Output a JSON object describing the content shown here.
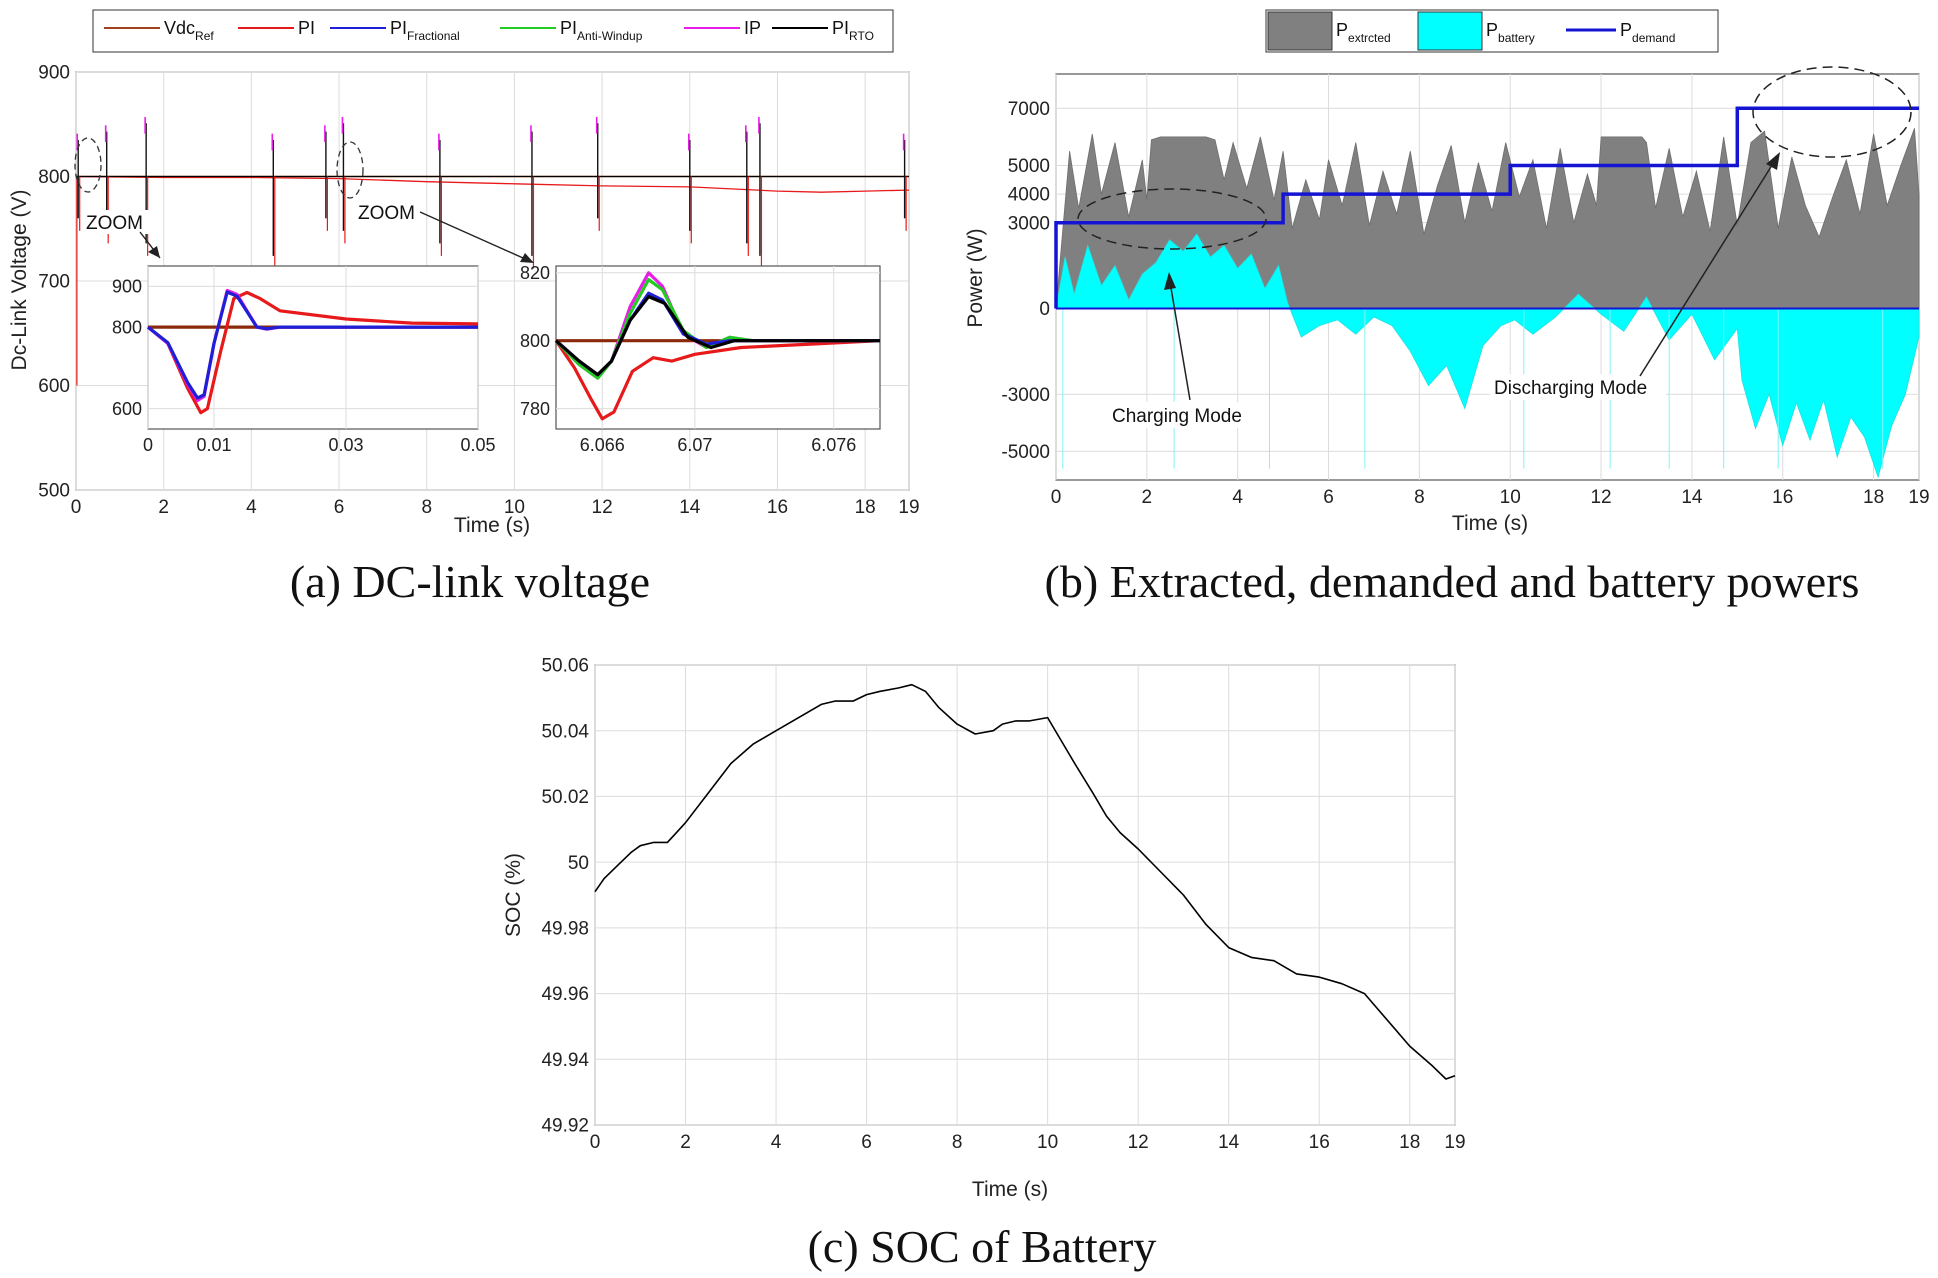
{
  "chart_data": [
    {
      "id": "a",
      "type": "line",
      "caption": "(a) DC-link voltage",
      "xlabel": "Time (s)",
      "ylabel": "Dc-Link Voltage (V)",
      "xlim": [
        0,
        19
      ],
      "ylim": [
        500,
        900
      ],
      "xticks": [
        0,
        2,
        4,
        6,
        8,
        10,
        12,
        14,
        16,
        18,
        19
      ],
      "yticks": [
        500,
        600,
        700,
        800,
        900
      ],
      "grid": true,
      "legend_position": "top",
      "legend": [
        {
          "main": "Vdc",
          "sub": "Ref",
          "color": "#a0421d"
        },
        {
          "main": "PI",
          "sub": "",
          "color": "#e8191a"
        },
        {
          "main": "PI",
          "sub": "Fractional",
          "color": "#1f1fd6"
        },
        {
          "main": "PI",
          "sub": "Anti-Windup",
          "color": "#22cc22"
        },
        {
          "main": "IP",
          "sub": "",
          "color": "#e61ee6"
        },
        {
          "main": "PI",
          "sub": "RTO",
          "color": "#000000"
        }
      ],
      "reference_voltage": 800,
      "pi_drift": {
        "t": [
          0,
          2,
          4,
          6,
          8,
          10,
          12,
          14,
          16,
          17,
          18,
          19
        ],
        "v": [
          800,
          799,
          799,
          798,
          795,
          793,
          791,
          790,
          786,
          785,
          786,
          787
        ]
      },
      "disturbance_times": [
        0.05,
        0.7,
        1.6,
        4.5,
        5.7,
        6.1,
        8.3,
        10.4,
        11.9,
        14.0,
        15.3,
        15.6,
        18.9
      ],
      "annotations": [
        "ZOOM",
        "ZOOM"
      ],
      "insets": [
        {
          "xlim": [
            0,
            0.05
          ],
          "ylim": [
            550,
            950
          ],
          "xticks": [
            0,
            0.01,
            0.03,
            0.05
          ],
          "xticklabels": [
            "0",
            "0.01",
            "0.03",
            "0.05"
          ],
          "yticks": [
            600,
            800,
            900
          ],
          "series": [
            {
              "name": "Vdc_Ref",
              "color": "#8b2a0b",
              "x": [
                0,
                0.05
              ],
              "y": [
                800,
                800
              ]
            },
            {
              "name": "PI",
              "color": "#e8191a",
              "x": [
                0,
                0.003,
                0.006,
                0.008,
                0.009,
                0.011,
                0.013,
                0.015,
                0.017,
                0.02,
                0.03,
                0.04,
                0.05
              ],
              "y": [
                800,
                760,
                650,
                590,
                600,
                740,
                870,
                885,
                870,
                840,
                820,
                810,
                808
              ]
            },
            {
              "name": "IP",
              "color": "#e61ee6",
              "x": [
                0,
                0.003,
                0.006,
                0.0075,
                0.0085,
                0.01,
                0.012,
                0.0135,
                0.015,
                0.0165,
                0.018,
                0.02,
                0.025,
                0.05
              ],
              "y": [
                800,
                760,
                660,
                620,
                630,
                760,
                890,
                880,
                840,
                800,
                795,
                800,
                800,
                800
              ]
            },
            {
              "name": "PI_Fractional",
              "color": "#1f1fd6",
              "x": [
                0,
                0.003,
                0.006,
                0.0075,
                0.0085,
                0.01,
                0.012,
                0.0135,
                0.015,
                0.0165,
                0.018,
                0.02,
                0.025,
                0.05
              ],
              "y": [
                800,
                762,
                664,
                626,
                634,
                760,
                886,
                876,
                838,
                800,
                796,
                800,
                800,
                800
              ]
            }
          ]
        },
        {
          "xlim": [
            6.064,
            6.078
          ],
          "ylim": [
            774,
            822
          ],
          "xticks": [
            6.066,
            6.07,
            6.076
          ],
          "xticklabels": [
            "6.066",
            "6.07",
            "6.076"
          ],
          "yticks": [
            780,
            800,
            820
          ],
          "series": [
            {
              "name": "Vdc_Ref",
              "color": "#8b2a0b",
              "x": [
                6.064,
                6.078
              ],
              "y": [
                800,
                800
              ]
            },
            {
              "name": "PI",
              "color": "#e8191a",
              "x": [
                6.064,
                6.0648,
                6.0655,
                6.066,
                6.0665,
                6.0673,
                6.0682,
                6.069,
                6.07,
                6.072,
                6.075,
                6.078
              ],
              "y": [
                800,
                792,
                783,
                777,
                779,
                791,
                795,
                794,
                796,
                798,
                799,
                800
              ]
            },
            {
              "name": "IP",
              "color": "#e61ee6",
              "x": [
                6.064,
                6.065,
                6.0658,
                6.0664,
                6.0672,
                6.068,
                6.0686,
                6.0695,
                6.0705,
                6.0715,
                6.0725,
                6.074,
                6.078
              ],
              "y": [
                800,
                793,
                789,
                794,
                810,
                820,
                816,
                802,
                798,
                801,
                800,
                800,
                800
              ]
            },
            {
              "name": "PI_Anti-Windup",
              "color": "#22cc22",
              "x": [
                6.064,
                6.065,
                6.0658,
                6.0664,
                6.0672,
                6.068,
                6.0686,
                6.0695,
                6.0705,
                6.0715,
                6.0725,
                6.074,
                6.078
              ],
              "y": [
                800,
                793,
                789,
                794,
                808,
                818,
                815,
                803,
                798,
                801,
                800,
                800,
                800
              ]
            },
            {
              "name": "PI_Fractional",
              "color": "#1f1fd6",
              "x": [
                6.064,
                6.065,
                6.0658,
                6.0664,
                6.0672,
                6.068,
                6.0686,
                6.0695,
                6.0705,
                6.0715,
                6.0725,
                6.074,
                6.078
              ],
              "y": [
                800,
                794,
                790,
                794,
                806,
                814,
                812,
                802,
                799,
                800,
                800,
                800,
                800
              ]
            },
            {
              "name": "PI_RTO",
              "color": "#000000",
              "x": [
                6.064,
                6.065,
                6.0658,
                6.0664,
                6.0672,
                6.068,
                6.0687,
                6.0697,
                6.0707,
                6.0717,
                6.073,
                6.078
              ],
              "y": [
                800,
                794,
                790,
                794,
                806,
                813,
                811,
                801,
                798,
                800,
                800,
                800
              ]
            }
          ]
        }
      ]
    },
    {
      "id": "b",
      "type": "area",
      "caption": "(b) Extracted, demanded and battery powers",
      "xlabel": "Time (s)",
      "ylabel": "Power (W)",
      "xlim": [
        0,
        19
      ],
      "ylim": [
        -6000,
        8200
      ],
      "xticks": [
        0,
        2,
        4,
        6,
        8,
        10,
        12,
        14,
        16,
        18,
        19
      ],
      "yticks": [
        -5000,
        -3000,
        0,
        3000,
        4000,
        5000,
        7000
      ],
      "grid": true,
      "legend_position": "top",
      "legend": [
        {
          "main": "P",
          "sub": "extrcted",
          "color": "#808080",
          "kind": "patch"
        },
        {
          "main": "P",
          "sub": "battery",
          "color": "#00ffff",
          "kind": "patch"
        },
        {
          "main": "P",
          "sub": "demand",
          "color": "#1414d2",
          "kind": "line"
        }
      ],
      "demand_steps": {
        "t": [
          0,
          5,
          10,
          15,
          19
        ],
        "p": [
          3000,
          4000,
          5000,
          7000,
          7000
        ]
      },
      "extracted": {
        "t": [
          0,
          0.3,
          0.5,
          0.8,
          1.0,
          1.3,
          1.6,
          1.9,
          2.0,
          2.1,
          2.3,
          3.0,
          3.3,
          3.5,
          3.7,
          3.9,
          4.2,
          4.5,
          4.8,
          5.0,
          5.2,
          5.5,
          5.8,
          6.0,
          6.3,
          6.6,
          6.9,
          7.2,
          7.5,
          7.8,
          8.1,
          8.4,
          8.7,
          9.0,
          9.3,
          9.6,
          9.9,
          10.2,
          10.5,
          10.8,
          11.1,
          11.4,
          11.7,
          11.9,
          12.0,
          12.2,
          12.9,
          13.0,
          13.2,
          13.5,
          13.8,
          14.1,
          14.4,
          14.7,
          15.0,
          15.3,
          15.6,
          15.9,
          16.2,
          16.5,
          16.8,
          17.1,
          17.4,
          17.7,
          18.0,
          18.3,
          18.6,
          18.9,
          19.0
        ],
        "p": [
          0,
          5500,
          3500,
          6100,
          4000,
          5800,
          3200,
          5200,
          3800,
          5900,
          6000,
          6000,
          6000,
          5900,
          4500,
          5800,
          4200,
          6000,
          3800,
          5500,
          2800,
          4500,
          3100,
          5200,
          3600,
          5800,
          2900,
          4800,
          3300,
          5500,
          2600,
          4300,
          5700,
          3000,
          5100,
          3400,
          5800,
          3900,
          5200,
          2800,
          5600,
          3000,
          4700,
          3600,
          6000,
          6000,
          6000,
          5800,
          3500,
          5600,
          3200,
          4800,
          2700,
          6000,
          2900,
          5800,
          6200,
          2800,
          5300,
          3600,
          2500,
          3900,
          5200,
          3300,
          6100,
          3600,
          5000,
          6300,
          4000
        ]
      },
      "battery": {
        "t": [
          0,
          0.2,
          0.4,
          0.7,
          1.0,
          1.3,
          1.6,
          1.9,
          2.2,
          2.5,
          2.8,
          3.1,
          3.4,
          3.7,
          4.0,
          4.3,
          4.6,
          4.9,
          5.1,
          5.4,
          5.8,
          6.2,
          6.6,
          7.0,
          7.4,
          7.8,
          8.2,
          8.6,
          9.0,
          9.4,
          9.8,
          10.1,
          10.5,
          11.0,
          11.5,
          12.0,
          12.5,
          13.0,
          13.5,
          14.0,
          14.5,
          15.0,
          15.1,
          15.4,
          15.7,
          16.0,
          16.3,
          16.6,
          16.9,
          17.2,
          17.5,
          17.8,
          18.1,
          18.4,
          18.7,
          19.0
        ],
        "p": [
          0,
          1800,
          500,
          2200,
          800,
          1500,
          300,
          1200,
          1600,
          2400,
          2000,
          2600,
          1800,
          2200,
          1400,
          1900,
          700,
          1500,
          200,
          -1000,
          -600,
          -400,
          -900,
          -300,
          -600,
          -1500,
          -2700,
          -2000,
          -3500,
          -1300,
          -600,
          -400,
          -900,
          -300,
          500,
          -200,
          -800,
          400,
          -1100,
          -200,
          -1800,
          -700,
          -2500,
          -4200,
          -3000,
          -4800,
          -3300,
          -4600,
          -3200,
          -5200,
          -3800,
          -4500,
          -5900,
          -4100,
          -3000,
          -1000
        ]
      },
      "annotations": [
        "Charging Mode",
        "Discharging Mode"
      ]
    },
    {
      "id": "c",
      "type": "line",
      "caption": "(c) SOC of Battery",
      "xlabel": "Time (s)",
      "ylabel": "SOC (%)",
      "xlim": [
        0,
        19
      ],
      "ylim": [
        49.92,
        50.06
      ],
      "xticks": [
        0,
        2,
        4,
        6,
        8,
        10,
        12,
        14,
        16,
        18,
        19
      ],
      "yticks": [
        49.92,
        49.94,
        49.96,
        49.98,
        50,
        50.02,
        50.04,
        50.06
      ],
      "yticklabels": [
        "49.92",
        "49.94",
        "49.96",
        "49.98",
        "50",
        "50.02",
        "50.04",
        "50.06"
      ],
      "grid": true,
      "series": [
        {
          "name": "SOC",
          "color": "#000000",
          "x": [
            0,
            0.2,
            0.5,
            0.8,
            1.0,
            1.3,
            1.6,
            1.8,
            2.0,
            2.5,
            3.0,
            3.5,
            4.0,
            4.5,
            5.0,
            5.3,
            5.7,
            6.0,
            6.3,
            6.7,
            7.0,
            7.3,
            7.6,
            8.0,
            8.4,
            8.8,
            9.0,
            9.3,
            9.6,
            10.0,
            10.3,
            10.6,
            11.0,
            11.3,
            11.6,
            12.0,
            12.5,
            13.0,
            13.5,
            14.0,
            14.5,
            15.0,
            15.5,
            16.0,
            16.5,
            17.0,
            17.5,
            18.0,
            18.5,
            18.8,
            19.0
          ],
          "y": [
            49.991,
            49.995,
            49.999,
            50.003,
            50.005,
            50.006,
            50.006,
            50.009,
            50.012,
            50.021,
            50.03,
            50.036,
            50.04,
            50.044,
            50.048,
            50.049,
            50.049,
            50.051,
            50.052,
            50.053,
            50.054,
            50.052,
            50.047,
            50.042,
            50.039,
            50.04,
            50.042,
            50.043,
            50.043,
            50.044,
            50.037,
            50.03,
            50.021,
            50.014,
            50.009,
            50.004,
            49.997,
            49.99,
            49.981,
            49.974,
            49.971,
            49.97,
            49.966,
            49.965,
            49.963,
            49.96,
            49.952,
            49.944,
            49.938,
            49.934,
            49.935
          ]
        }
      ]
    }
  ]
}
